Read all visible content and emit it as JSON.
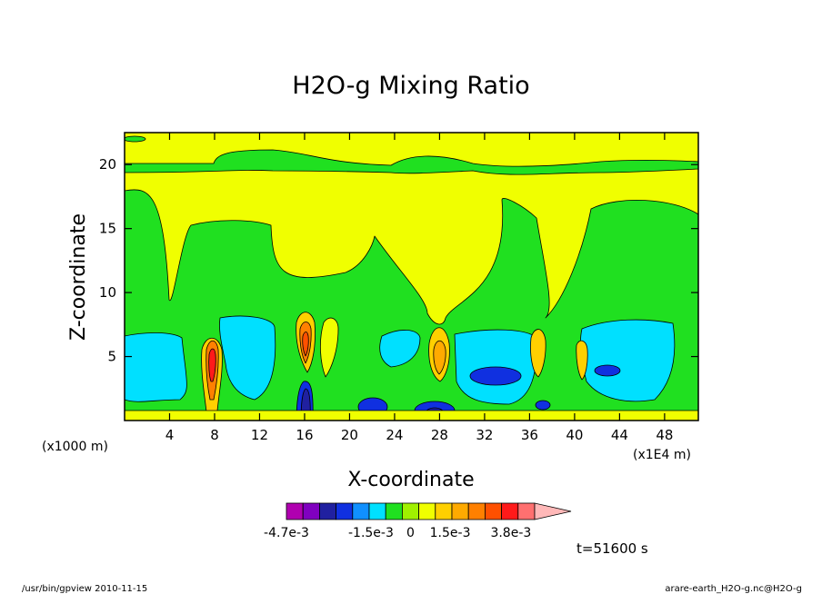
{
  "chart_data": {
    "type": "heatmap",
    "title": "H2O-g Mixing Ratio",
    "xlabel": "X-coordinate",
    "ylabel": "Z-coordinate",
    "x_unit": "(x1000 m)",
    "y_unit": "(x1E4 m)",
    "xlim": [
      0,
      51
    ],
    "ylim": [
      0,
      22.5
    ],
    "x_ticks": [
      4,
      8,
      12,
      16,
      20,
      24,
      28,
      32,
      36,
      40,
      44,
      48
    ],
    "y_ticks": [
      5,
      10,
      15,
      20
    ],
    "x_tick_labels": [
      "4",
      "8",
      "12",
      "16",
      "20",
      "24",
      "28",
      "32",
      "36",
      "40",
      "44",
      "48"
    ],
    "y_tick_labels": [
      "5",
      "10",
      "15",
      "20"
    ],
    "colorbar": {
      "min": -0.0047,
      "max": 0.0047,
      "extend": "max",
      "colors": [
        "#b000b0",
        "#8000c0",
        "#2020a0",
        "#1030e0",
        "#1090ff",
        "#00e0ff",
        "#20e020",
        "#a0f000",
        "#f0ff00",
        "#ffd000",
        "#ffaa00",
        "#ff8000",
        "#ff5000",
        "#ff1a1a",
        "#ff7070",
        "#ffb8b8"
      ],
      "tick_labels": [
        {
          "value": -0.0047,
          "text": "-4.7e-3"
        },
        {
          "value": -0.0015,
          "text": "-1.5e-3"
        },
        {
          "value": 0,
          "text": "0"
        },
        {
          "value": 0.0015,
          "text": "1.5e-3"
        },
        {
          "value": 0.0038,
          "text": "3.8e-3"
        }
      ]
    },
    "time": "t=51600 s",
    "grid": false
  },
  "footer": {
    "left": "/usr/bin/gpview   2010-11-15",
    "right": "arare-earth_H2O-g.nc@H2O-g"
  },
  "colors": {
    "yellow": "#f0ff00",
    "green": "#20e020",
    "cyan": "#00e0ff",
    "blue": "#1030e0",
    "navy": "#2020a0",
    "purple": "#8000c0",
    "magenta": "#b000b0",
    "light_yellow": "#ffd000",
    "orange": "#ffaa00",
    "dark_orange": "#ff8000",
    "red_orange": "#ff5000",
    "red": "#ff1a1a",
    "lime": "#a0f000"
  }
}
